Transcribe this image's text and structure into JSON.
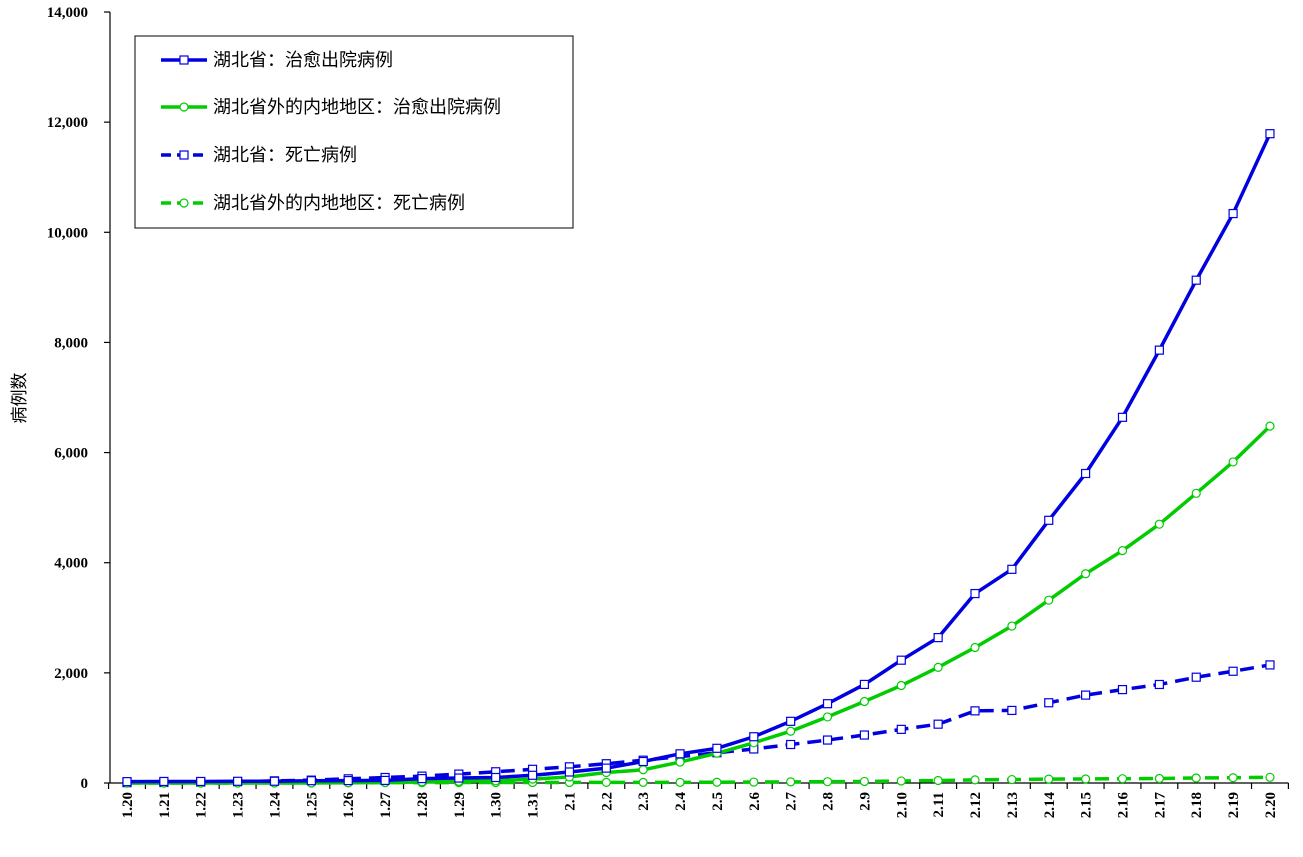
{
  "chart_data": {
    "type": "line",
    "title": "",
    "xlabel": "",
    "ylabel": "病例数",
    "ylim": [
      0,
      14000
    ],
    "yticks": [
      0,
      2000,
      4000,
      6000,
      8000,
      10000,
      12000,
      14000
    ],
    "ytick_labels": [
      "0",
      "2,000",
      "4,000",
      "6,000",
      "8,000",
      "10,000",
      "12,000",
      "14,000"
    ],
    "categories": [
      "1.20",
      "1.21",
      "1.22",
      "1.23",
      "1.24",
      "1.25",
      "1.26",
      "1.27",
      "1.28",
      "1.29",
      "1.30",
      "1.31",
      "2.1",
      "2.2",
      "2.3",
      "2.4",
      "2.5",
      "2.6",
      "2.7",
      "2.8",
      "2.9",
      "2.10",
      "2.11",
      "2.12",
      "2.13",
      "2.14",
      "2.15",
      "2.16",
      "2.17",
      "2.18",
      "2.19",
      "2.20"
    ],
    "grid": false,
    "legend_position": "top-left",
    "series": [
      {
        "name": "湖北省：治愈出院病例",
        "color": "#0000e0",
        "line_style": "solid",
        "marker": "square",
        "values": [
          25,
          28,
          28,
          31,
          32,
          42,
          44,
          47,
          80,
          90,
          100,
          140,
          200,
          270,
          390,
          530,
          630,
          840,
          1120,
          1440,
          1790,
          2230,
          2640,
          3440,
          3880,
          4770,
          5620,
          6640,
          7860,
          9130,
          10340,
          11790
        ]
      },
      {
        "name": "湖北省外的内地地区：治愈出院病例",
        "color": "#00cc00",
        "line_style": "solid",
        "marker": "circle",
        "values": [
          0,
          0,
          0,
          0,
          0,
          0,
          5,
          10,
          20,
          30,
          40,
          70,
          110,
          190,
          240,
          380,
          540,
          730,
          940,
          1200,
          1480,
          1770,
          2100,
          2460,
          2850,
          3320,
          3800,
          4220,
          4700,
          5260,
          5830,
          6480
        ]
      },
      {
        "name": "湖北省：死亡病例",
        "color": "#0000e0",
        "line_style": "dashed",
        "marker": "square",
        "values": [
          6,
          9,
          17,
          24,
          39,
          52,
          76,
          100,
          125,
          162,
          204,
          249,
          294,
          350,
          414,
          479,
          549,
          618,
          699,
          780,
          871,
          974,
          1068,
          1310,
          1318,
          1457,
          1596,
          1696,
          1789,
          1921,
          2029,
          2144
        ]
      },
      {
        "name": "湖北省外的内地地区：死亡病例",
        "color": "#00cc00",
        "line_style": "dashed",
        "marker": "circle",
        "values": [
          0,
          0,
          0,
          1,
          2,
          4,
          4,
          6,
          7,
          8,
          9,
          10,
          10,
          11,
          11,
          11,
          14,
          17,
          20,
          24,
          28,
          37,
          45,
          57,
          62,
          71,
          73,
          78,
          82,
          91,
          96,
          103
        ]
      }
    ]
  }
}
